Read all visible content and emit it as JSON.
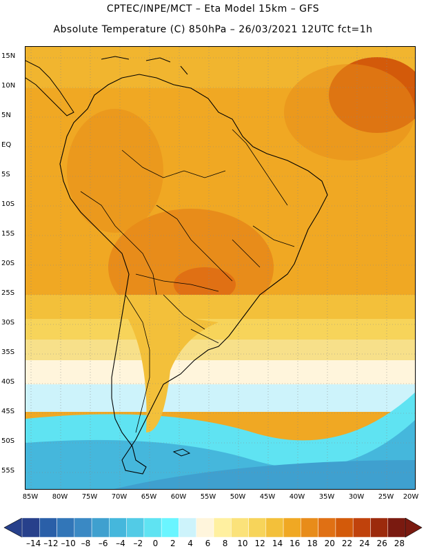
{
  "header": {
    "line1": "CPTEC/INPE/MCT –  Eta Model 15km – GFS",
    "line2": "Absolute Temperature (C) 850hPa – 26/03/2021 12UTC fct=1h"
  },
  "map": {
    "lat_labels": [
      "15N",
      "10N",
      "5N",
      "EQ",
      "5S",
      "10S",
      "15S",
      "20S",
      "25S",
      "30S",
      "35S",
      "40S",
      "45S",
      "50S",
      "55S"
    ],
    "lon_labels": [
      "85W",
      "80W",
      "75W",
      "70W",
      "65W",
      "60W",
      "55W",
      "50W",
      "45W",
      "40W",
      "35W",
      "30W",
      "25W",
      "20W"
    ],
    "grid_style": "dotted",
    "field_palette": {
      "warmest_ne": "#d35a0a",
      "warm": "#e88c1a",
      "mid_orange": "#f0a823",
      "orange_yellow": "#f3c03a",
      "light_yellow": "#f7e08a",
      "cream": "#fff5dc",
      "pale_cyan": "#cdf3fb",
      "cyan": "#5ee8f5",
      "blue_green": "#43bde0",
      "steel_blue": "#3aa0d0"
    }
  },
  "colorbar": {
    "labels": [
      "-14",
      "-12",
      "-10",
      "-8",
      "-6",
      "-4",
      "-2",
      "0",
      "2",
      "4",
      "6",
      "8",
      "10",
      "12",
      "14",
      "16",
      "18",
      "20",
      "22",
      "24",
      "26",
      "28"
    ],
    "colors": [
      "#27408b",
      "#2a5fa8",
      "#3276b8",
      "#3a89c4",
      "#3fa0cf",
      "#45b7dc",
      "#52cbe6",
      "#5fe3f2",
      "#6af5ff",
      "#cdf3fb",
      "#fff5dc",
      "#fff0a0",
      "#fbe27a",
      "#f7d45a",
      "#f3c03a",
      "#f0a823",
      "#e88c1a",
      "#e07014",
      "#d35a0a",
      "#c0420c",
      "#9c2a0c",
      "#7a1a10"
    ]
  }
}
